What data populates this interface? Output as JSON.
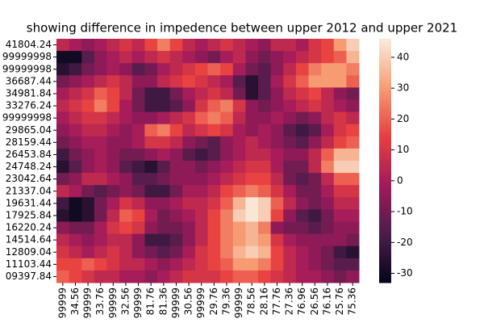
{
  "chart_data": {
    "type": "heatmap",
    "title": "showing difference in impedence between upper 2012 and upper 2021",
    "y_categories": [
      "41804.24",
      "99999998",
      "99999998",
      "36687.44",
      "34981.84",
      "33276.24",
      "99999998",
      "29865.04",
      "28159.44",
      "26453.84",
      "24748.24",
      "23042.64",
      "21337.04",
      "19631.44",
      "17925.84",
      "16220.24",
      "14514.64",
      "12809.04",
      "11103.44",
      "09397.84"
    ],
    "x_categories": [
      "99999",
      "34.56",
      "99999",
      "33.76",
      "99999",
      "32.56",
      "99999",
      "81.76",
      "81.36",
      "99999",
      "30.56",
      "99999",
      "29.76",
      "79.36",
      "99999",
      "78.56",
      "28.16",
      "77.76",
      "27.36",
      "76.96",
      "26.56",
      "76.16",
      "25.76",
      "75.36"
    ],
    "values": [
      [
        5,
        0,
        -5,
        0,
        5,
        10,
        5,
        15,
        25,
        15,
        5,
        0,
        5,
        10,
        5,
        0,
        -5,
        5,
        5,
        0,
        10,
        15,
        30,
        40
      ],
      [
        -30,
        -30,
        -15,
        -5,
        0,
        5,
        0,
        5,
        10,
        5,
        0,
        -5,
        -10,
        0,
        5,
        -5,
        -10,
        -5,
        0,
        5,
        10,
        15,
        20,
        35
      ],
      [
        -25,
        -20,
        -10,
        -5,
        0,
        -5,
        -15,
        -10,
        0,
        5,
        10,
        15,
        20,
        15,
        0,
        -10,
        -15,
        -5,
        5,
        15,
        25,
        30,
        30,
        25
      ],
      [
        -10,
        -5,
        0,
        5,
        10,
        5,
        -5,
        -5,
        5,
        10,
        15,
        10,
        5,
        0,
        -15,
        -25,
        -15,
        0,
        10,
        20,
        30,
        30,
        30,
        20
      ],
      [
        0,
        5,
        10,
        20,
        15,
        5,
        -10,
        -20,
        -20,
        -10,
        0,
        5,
        10,
        5,
        -10,
        -25,
        -15,
        -5,
        5,
        10,
        15,
        5,
        -5,
        -10
      ],
      [
        5,
        10,
        15,
        25,
        15,
        0,
        -10,
        -20,
        -20,
        -15,
        -5,
        10,
        20,
        25,
        10,
        -5,
        -10,
        -5,
        0,
        5,
        10,
        5,
        0,
        -5
      ],
      [
        0,
        5,
        10,
        10,
        5,
        0,
        -5,
        -5,
        0,
        5,
        10,
        20,
        25,
        20,
        5,
        -5,
        -5,
        0,
        -5,
        -10,
        -5,
        5,
        10,
        5
      ],
      [
        -5,
        0,
        5,
        5,
        0,
        -5,
        0,
        20,
        25,
        15,
        5,
        10,
        15,
        10,
        0,
        -5,
        0,
        -5,
        -15,
        -20,
        -15,
        0,
        10,
        15
      ],
      [
        -10,
        -5,
        0,
        0,
        -5,
        -5,
        0,
        10,
        10,
        5,
        -5,
        -10,
        -15,
        -5,
        0,
        5,
        0,
        -5,
        -10,
        -15,
        -5,
        5,
        15,
        20
      ],
      [
        -20,
        -10,
        -5,
        0,
        -5,
        -10,
        -10,
        -5,
        0,
        -5,
        -15,
        -20,
        -15,
        -5,
        0,
        5,
        5,
        0,
        -5,
        -5,
        5,
        20,
        35,
        35
      ],
      [
        -25,
        -15,
        -5,
        0,
        -5,
        -15,
        -20,
        -25,
        -15,
        -5,
        -5,
        -10,
        -5,
        0,
        5,
        10,
        10,
        0,
        -10,
        -10,
        5,
        25,
        40,
        40
      ],
      [
        -10,
        -5,
        5,
        5,
        0,
        -5,
        -15,
        -15,
        -10,
        -5,
        -5,
        -5,
        0,
        5,
        10,
        15,
        15,
        5,
        -10,
        -15,
        -10,
        5,
        20,
        20
      ],
      [
        5,
        0,
        -10,
        -15,
        -10,
        -5,
        -10,
        -20,
        -20,
        -10,
        0,
        0,
        5,
        15,
        20,
        25,
        20,
        10,
        0,
        -10,
        -10,
        0,
        10,
        10
      ],
      [
        -20,
        -30,
        -25,
        -10,
        0,
        10,
        5,
        -5,
        -5,
        0,
        5,
        5,
        10,
        20,
        35,
        45,
        40,
        20,
        5,
        -5,
        -10,
        -5,
        5,
        5
      ],
      [
        -25,
        -30,
        -25,
        -10,
        5,
        20,
        15,
        0,
        -10,
        -5,
        0,
        5,
        15,
        25,
        40,
        45,
        40,
        15,
        -5,
        -15,
        -20,
        -10,
        0,
        0
      ],
      [
        -5,
        -10,
        -10,
        0,
        10,
        15,
        10,
        -5,
        -10,
        -10,
        -5,
        5,
        15,
        25,
        30,
        35,
        25,
        -5,
        -10,
        -10,
        -15,
        -10,
        -5,
        -5
      ],
      [
        5,
        0,
        -5,
        0,
        5,
        5,
        -5,
        -20,
        -20,
        -15,
        -5,
        5,
        15,
        25,
        30,
        35,
        30,
        10,
        0,
        -5,
        -5,
        -5,
        -5,
        -10
      ],
      [
        10,
        5,
        0,
        5,
        10,
        5,
        -5,
        -10,
        -15,
        -10,
        0,
        10,
        15,
        25,
        35,
        40,
        35,
        15,
        5,
        0,
        -5,
        -10,
        -20,
        -25
      ],
      [
        15,
        15,
        20,
        15,
        10,
        5,
        5,
        0,
        -5,
        0,
        5,
        10,
        15,
        20,
        30,
        30,
        25,
        15,
        5,
        0,
        -5,
        -10,
        -15,
        -15
      ],
      [
        20,
        15,
        10,
        5,
        5,
        0,
        0,
        -5,
        0,
        5,
        10,
        10,
        10,
        15,
        20,
        20,
        15,
        10,
        5,
        0,
        0,
        -5,
        -10,
        -5
      ]
    ],
    "clim": [
      -33,
      46
    ],
    "cticks": [
      -30,
      -20,
      -10,
      0,
      10,
      20,
      30,
      40
    ],
    "colormap": [
      "#03051a",
      "#4c1d4b",
      "#a11a5b",
      "#e83f3f",
      "#f69c73",
      "#faebdd"
    ]
  }
}
